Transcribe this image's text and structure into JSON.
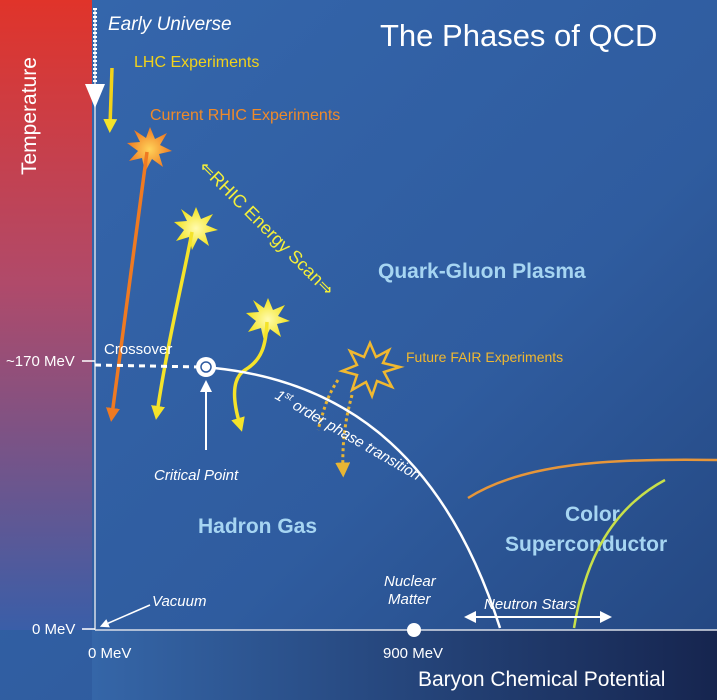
{
  "title": "The Phases of QCD",
  "axes": {
    "y_label": "Temperature",
    "x_label": "Baryon Chemical Potential",
    "y_ticks": [
      "~170 MeV",
      "0 MeV"
    ],
    "x_ticks": [
      "0 MeV",
      "900 MeV"
    ]
  },
  "labels": {
    "early_universe": "Early Universe",
    "lhc": "LHC Experiments",
    "rhic": "Current RHIC Experiments",
    "energy_scan": "⇐RHIC Energy Scan⇒",
    "qgp": "Quark-Gluon Plasma",
    "crossover": "Crossover",
    "critical_point": "Critical Point",
    "fair": "Future FAIR Experiments",
    "first_order_sup": "st",
    "first_order_num": "1",
    "first_order_rest": " order phase transition",
    "hadron_gas": "Hadron Gas",
    "color_sc_1": "Color",
    "color_sc_2": "Superconductor",
    "vacuum": "Vacuum",
    "nuclear_1": "Nuclear",
    "nuclear_2": "Matter",
    "neutron_stars": "Neutron Stars"
  },
  "colors": {
    "background": "#2e5aa0",
    "lhc": "#f2d21a",
    "rhic": "#ef8a2a",
    "scan": "#f4ef3a",
    "fair": "#f0b830",
    "region_text": "#a6d5f2",
    "orange_curve": "#e6963a",
    "green_curve": "#c8e04a"
  }
}
